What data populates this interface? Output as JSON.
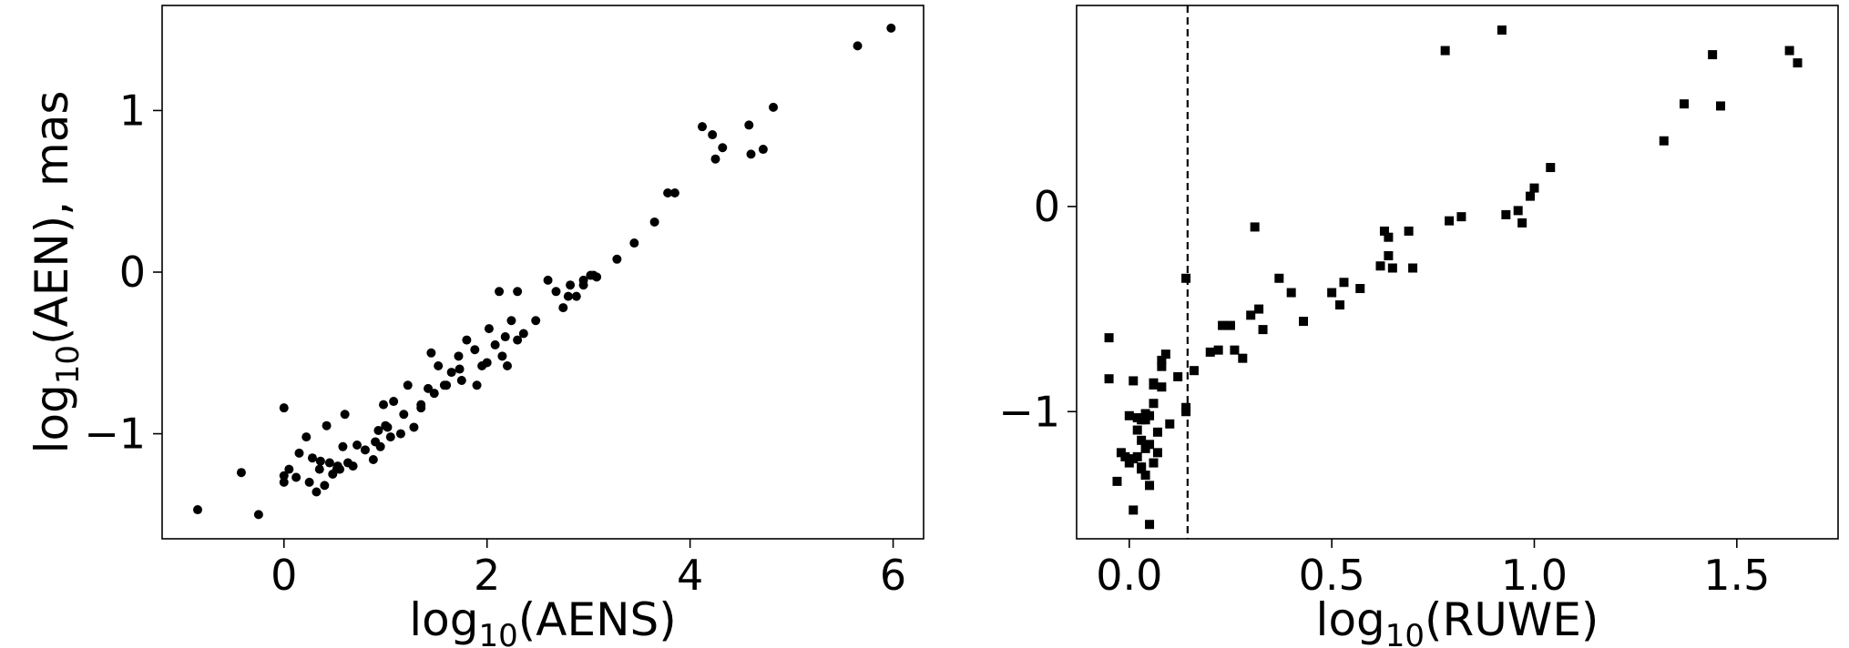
{
  "chart_data": [
    {
      "type": "scatter",
      "marker": "circle",
      "color": "#000000",
      "xlabel": {
        "base": "log",
        "sub": "10",
        "rest": "(AENS)"
      },
      "ylabel": {
        "base": "log",
        "sub": "10",
        "rest": "(AEN),  mas"
      },
      "xlim": [
        -1.2,
        6.3
      ],
      "ylim": [
        -1.65,
        1.65
      ],
      "xticks": [
        0,
        2,
        4,
        6
      ],
      "xtick_labels": [
        "0",
        "2",
        "4",
        "6"
      ],
      "yticks": [
        -1,
        0,
        1
      ],
      "ytick_labels": [
        "−1",
        "0",
        "1"
      ],
      "grid": false,
      "x": [
        -0.85,
        -0.42,
        -0.25,
        0.0,
        0.0,
        0.05,
        0.15,
        0.22,
        0.28,
        0.32,
        0.36,
        0.42,
        0.48,
        0.53,
        0.6,
        0.63,
        0.72,
        0.8,
        0.88,
        0.93,
        0.98,
        1.02,
        1.08,
        1.15,
        1.22,
        1.28,
        1.35,
        1.42,
        1.45,
        1.52,
        1.58,
        1.65,
        1.72,
        1.75,
        1.8,
        1.88,
        1.95,
        2.02,
        2.08,
        2.12,
        2.18,
        2.24,
        2.3,
        2.36,
        2.48,
        2.6,
        2.68,
        2.75,
        2.82,
        2.88,
        2.95,
        3.02,
        3.08,
        3.28,
        3.45,
        3.65,
        3.78,
        3.85,
        4.12,
        4.22,
        4.32,
        4.58,
        4.72,
        4.82,
        5.65,
        5.98,
        0.0,
        0.12,
        0.4,
        0.35,
        0.52,
        0.58,
        0.68,
        0.9,
        1.05,
        1.18,
        1.48,
        1.73,
        2.0,
        2.15,
        2.3,
        2.2,
        1.6,
        0.95,
        0.25,
        2.95,
        4.25,
        4.6,
        1.0,
        1.35,
        3.05,
        0.45,
        0.55,
        2.8,
        1.9
      ],
      "y": [
        -1.47,
        -1.24,
        -1.5,
        -0.84,
        -1.3,
        -1.22,
        -1.12,
        -1.02,
        -1.15,
        -1.36,
        -1.17,
        -0.95,
        -1.25,
        -1.2,
        -0.88,
        -1.18,
        -1.07,
        -1.1,
        -1.16,
        -0.98,
        -0.82,
        -0.96,
        -0.8,
        -1.0,
        -0.7,
        -0.96,
        -0.84,
        -0.72,
        -0.5,
        -0.58,
        -0.7,
        -0.62,
        -0.52,
        -0.67,
        -0.42,
        -0.48,
        -0.58,
        -0.35,
        -0.45,
        -0.12,
        -0.4,
        -0.3,
        -0.12,
        -0.38,
        -0.3,
        -0.05,
        -0.12,
        -0.22,
        -0.08,
        -0.15,
        -0.05,
        -0.02,
        -0.03,
        0.08,
        0.18,
        0.31,
        0.49,
        0.49,
        0.9,
        0.85,
        0.77,
        0.91,
        0.76,
        1.02,
        1.4,
        1.51,
        -1.26,
        -1.27,
        -1.32,
        -1.22,
        -1.22,
        -1.08,
        -1.2,
        -1.05,
        -1.02,
        -0.88,
        -0.75,
        -0.6,
        -0.56,
        -0.52,
        -0.42,
        -0.58,
        -0.7,
        -1.08,
        -1.3,
        -0.08,
        0.7,
        0.73,
        -0.95,
        -0.82,
        -0.02,
        -1.18,
        -1.22,
        -0.15,
        -0.7
      ]
    },
    {
      "type": "scatter",
      "marker": "square",
      "color": "#000000",
      "xlabel": {
        "base": "log",
        "sub": "10",
        "rest": "(RUWE)"
      },
      "ylabel": {
        "base": "",
        "sub": "",
        "rest": ""
      },
      "xlim": [
        -0.13,
        1.75
      ],
      "ylim": [
        -1.62,
        0.98
      ],
      "xticks": [
        0.0,
        0.5,
        1.0,
        1.5
      ],
      "xtick_labels": [
        "0.0",
        "0.5",
        "1.0",
        "1.5"
      ],
      "yticks": [
        -1,
        0
      ],
      "ytick_labels": [
        "−1",
        "0"
      ],
      "grid": false,
      "vline": {
        "x": 0.144,
        "style": "dashed"
      },
      "x": [
        -0.05,
        -0.05,
        -0.03,
        -0.02,
        -0.01,
        0.0,
        0.0,
        0.01,
        0.01,
        0.02,
        0.02,
        0.03,
        0.03,
        0.03,
        0.04,
        0.04,
        0.04,
        0.05,
        0.05,
        0.05,
        0.06,
        0.06,
        0.06,
        0.07,
        0.07,
        0.08,
        0.08,
        0.09,
        0.1,
        0.12,
        0.14,
        0.14,
        0.14,
        0.16,
        0.2,
        0.22,
        0.23,
        0.25,
        0.26,
        0.28,
        0.3,
        0.31,
        0.32,
        0.33,
        0.37,
        0.4,
        0.43,
        0.5,
        0.52,
        0.53,
        0.57,
        0.62,
        0.63,
        0.64,
        0.64,
        0.65,
        0.7,
        0.69,
        0.78,
        0.79,
        0.82,
        0.92,
        0.93,
        0.96,
        0.97,
        0.99,
        1.0,
        1.04,
        1.32,
        1.37,
        1.44,
        1.46,
        1.63,
        1.65,
        0.08,
        0.06,
        0.03,
        0.01,
        0.05,
        0.02,
        0.04
      ],
      "y": [
        -0.64,
        -0.84,
        -1.34,
        -1.2,
        -1.22,
        -1.25,
        -1.02,
        -0.85,
        -1.48,
        -1.09,
        -1.22,
        -1.04,
        -1.28,
        -1.14,
        -1.31,
        -1.18,
        -1.04,
        -1.36,
        -1.16,
        -1.02,
        -0.87,
        -0.96,
        -1.25,
        -1.1,
        -1.2,
        -0.88,
        -0.75,
        -0.72,
        -1.06,
        -0.83,
        -1.0,
        -0.98,
        -0.35,
        -0.8,
        -0.71,
        -0.7,
        -0.58,
        -0.58,
        -0.7,
        -0.74,
        -0.53,
        -0.1,
        -0.5,
        -0.6,
        -0.35,
        -0.42,
        -0.56,
        -0.42,
        -0.48,
        -0.37,
        -0.4,
        -0.29,
        -0.12,
        -0.15,
        -0.24,
        -0.3,
        -0.3,
        -0.12,
        0.76,
        -0.07,
        -0.05,
        0.86,
        -0.04,
        -0.02,
        -0.08,
        0.05,
        0.09,
        0.19,
        0.32,
        0.5,
        0.74,
        0.49,
        0.76,
        0.7,
        -0.78,
        -0.86,
        -1.27,
        -1.23,
        -1.55,
        -1.03,
        -1.01
      ]
    }
  ]
}
